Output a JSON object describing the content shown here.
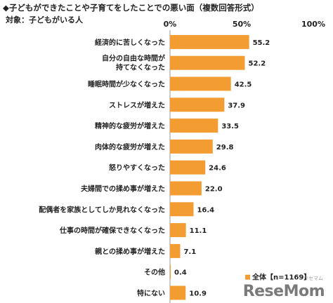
{
  "header": {
    "title": "◆子どもができたことや子育てをしたことでの悪い面（複数回答形式）",
    "subtitle": "対象：子どもがいる人"
  },
  "colors": {
    "bar": "#F39C32",
    "axis": "#999999",
    "text": "#222222"
  },
  "brand": {
    "name": "ReseMom",
    "small": "リセマム"
  },
  "chart_data": {
    "type": "bar",
    "orientation": "horizontal",
    "ticks": [
      "0%",
      "50%",
      "100%"
    ],
    "xlim": [
      0,
      100
    ],
    "categories": [
      [
        "経済的に苦しくなった"
      ],
      [
        "自分の自由な時間が",
        "持てなくなった"
      ],
      [
        "睡眠時間が少なくなった"
      ],
      [
        "ストレスが増えた"
      ],
      [
        "精神的な疲労が増えた"
      ],
      [
        "肉体的な疲労が増えた"
      ],
      [
        "怒りやすくなった"
      ],
      [
        "夫婦間での揉め事が増えた"
      ],
      [
        "配偶者を家族としてしか見れなくなった"
      ],
      [
        "仕事の時間が確保できなくなった"
      ],
      [
        "親との揉め事が増えた"
      ],
      [
        "その他"
      ],
      [
        "特にない"
      ]
    ],
    "series": [
      {
        "name": "全体【n=1169】",
        "values": [
          55.2,
          52.2,
          42.5,
          37.9,
          33.5,
          29.8,
          24.6,
          22.0,
          16.4,
          11.1,
          7.1,
          0.4,
          10.9
        ],
        "labels": [
          "55.2",
          "52.2",
          "42.5",
          "37.9",
          "33.5",
          "29.8",
          "24.6",
          "22.0",
          "16.4",
          "11.1",
          "7.1",
          "0.4",
          "10.9"
        ]
      }
    ]
  }
}
